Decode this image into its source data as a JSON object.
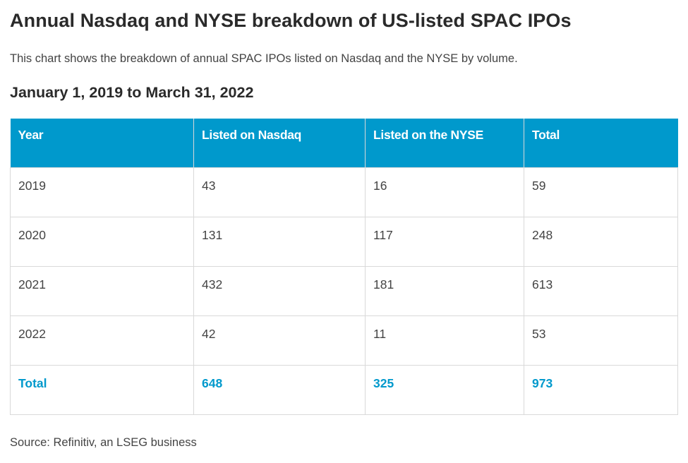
{
  "title": "Annual Nasdaq and NYSE breakdown of US-listed SPAC IPOs",
  "subtitle": "This chart shows the breakdown of annual SPAC IPOs listed on Nasdaq and the NYSE by volume.",
  "date_range": "January 1, 2019 to March 31, 2022",
  "source": "Source: Refinitiv, an LSEG business",
  "colors": {
    "header_bg": "#0099cc",
    "header_text": "#ffffff",
    "total_text": "#0099cc",
    "border": "#d9d9d9"
  },
  "chart_data": {
    "type": "table",
    "title": "Annual Nasdaq and NYSE breakdown of US-listed SPAC IPOs",
    "subtitle": "This chart shows the breakdown of annual SPAC IPOs listed on Nasdaq and the NYSE by volume.",
    "columns": [
      "Year",
      "Listed on Nasdaq",
      "Listed on the NYSE",
      "Total"
    ],
    "rows": [
      [
        "2019",
        "43",
        "16",
        "59"
      ],
      [
        "2020",
        "131",
        "117",
        "248"
      ],
      [
        "2021",
        "432",
        "181",
        "613"
      ],
      [
        "2022",
        "42",
        "11",
        "53"
      ]
    ],
    "total_row": [
      "Total",
      "648",
      "325",
      "973"
    ]
  }
}
